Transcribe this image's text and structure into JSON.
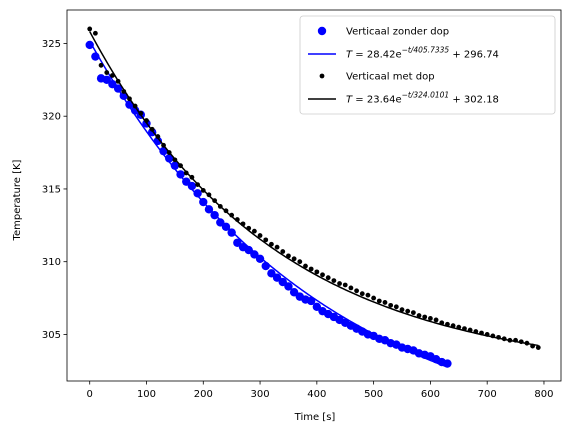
{
  "chart_data": {
    "type": "scatter",
    "xlabel": "Time [s]",
    "ylabel": "Temperature [K]",
    "xlim": [
      -40,
      830
    ],
    "ylim": [
      301.8,
      327.3
    ],
    "xticks": [
      0,
      100,
      200,
      300,
      400,
      500,
      600,
      700,
      800
    ],
    "yticks": [
      305,
      310,
      315,
      320,
      325
    ],
    "grid": false,
    "legend_position": "top-right",
    "colors": {
      "blue": "#0000ff",
      "black": "#000000"
    },
    "series": [
      {
        "name": "Verticaal zonder dop",
        "kind": "markers",
        "color": "#0000ff",
        "x": [
          0,
          10,
          20,
          30,
          40,
          50,
          60,
          70,
          80,
          90,
          100,
          110,
          120,
          130,
          140,
          150,
          160,
          170,
          180,
          190,
          200,
          210,
          220,
          230,
          240,
          250,
          260,
          270,
          280,
          290,
          300,
          310,
          320,
          330,
          340,
          350,
          360,
          370,
          380,
          390,
          400,
          410,
          420,
          430,
          440,
          450,
          460,
          470,
          480,
          490,
          500,
          510,
          520,
          530,
          540,
          550,
          560,
          570,
          580,
          590,
          600,
          610,
          620,
          630
        ],
        "y": [
          324.9,
          324.1,
          322.6,
          322.5,
          322.2,
          321.9,
          321.4,
          320.8,
          320.4,
          320.1,
          319.5,
          318.9,
          318.3,
          317.6,
          317.1,
          316.6,
          316.0,
          315.5,
          315.2,
          314.7,
          314.1,
          313.6,
          313.2,
          312.7,
          312.4,
          312.0,
          311.3,
          311.0,
          310.8,
          310.5,
          310.2,
          309.7,
          309.2,
          308.9,
          308.6,
          308.3,
          307.9,
          307.6,
          307.4,
          307.3,
          306.9,
          306.6,
          306.4,
          306.2,
          306.0,
          305.8,
          305.6,
          305.4,
          305.2,
          305.0,
          304.9,
          304.7,
          304.6,
          304.4,
          304.3,
          304.1,
          304.0,
          303.9,
          303.7,
          303.6,
          303.5,
          303.3,
          303.1,
          303.0
        ]
      },
      {
        "name": "$T = 28.42e^{-t/405.7335} + 296.74$",
        "kind": "line",
        "color": "#0000ff",
        "amplitude": 28.42,
        "tau": 405.7335,
        "offset": 296.74,
        "x_range": [
          0,
          630
        ]
      },
      {
        "name": "Verticaal met dop",
        "kind": "markers",
        "color": "#000000",
        "x": [
          0,
          10,
          20,
          30,
          40,
          50,
          60,
          70,
          80,
          90,
          100,
          110,
          120,
          130,
          140,
          150,
          160,
          170,
          180,
          190,
          200,
          210,
          220,
          230,
          240,
          250,
          260,
          270,
          280,
          290,
          300,
          310,
          320,
          330,
          340,
          350,
          360,
          370,
          380,
          390,
          400,
          410,
          420,
          430,
          440,
          450,
          460,
          470,
          480,
          490,
          500,
          510,
          520,
          530,
          540,
          550,
          560,
          570,
          580,
          590,
          600,
          610,
          620,
          630,
          640,
          650,
          660,
          670,
          680,
          690,
          700,
          710,
          720,
          730,
          740,
          750,
          760,
          770,
          780,
          790
        ],
        "y": [
          326.0,
          325.7,
          323.5,
          323.0,
          322.8,
          322.4,
          321.7,
          321.2,
          320.7,
          320.2,
          319.7,
          319.1,
          318.6,
          318.0,
          317.5,
          317.0,
          316.6,
          316.1,
          315.8,
          315.3,
          314.9,
          314.6,
          314.2,
          313.8,
          313.5,
          313.2,
          312.9,
          312.6,
          312.3,
          312.1,
          311.8,
          311.5,
          311.2,
          311.0,
          310.7,
          310.4,
          310.2,
          310.0,
          309.7,
          309.5,
          309.3,
          309.1,
          308.9,
          308.7,
          308.5,
          308.4,
          308.2,
          308.0,
          307.8,
          307.7,
          307.5,
          307.3,
          307.2,
          307.0,
          306.9,
          306.7,
          306.6,
          306.5,
          306.3,
          306.2,
          306.1,
          306.0,
          305.8,
          305.7,
          305.6,
          305.5,
          305.4,
          305.3,
          305.2,
          305.1,
          305.0,
          304.9,
          304.8,
          304.7,
          304.6,
          304.6,
          304.5,
          304.4,
          304.2,
          304.1
        ]
      },
      {
        "name": "$T = 23.64e^{-t/324.0101} + 302.18$",
        "kind": "line",
        "color": "#000000",
        "amplitude": 23.64,
        "tau": 324.0101,
        "offset": 302.18,
        "x_range": [
          0,
          790
        ]
      }
    ],
    "legend": {
      "entries": [
        {
          "label": "Verticaal zonder dop",
          "pre": "",
          "base": "",
          "sup": "",
          "post": ""
        },
        {
          "label": "",
          "pre": "T = 28.42e",
          "base": "",
          "sup": "−t/405.7335",
          "post": " + 296.74"
        },
        {
          "label": "Verticaal met dop",
          "pre": "",
          "base": "",
          "sup": "",
          "post": ""
        },
        {
          "label": "",
          "pre": "T = 23.64e",
          "base": "",
          "sup": "−t/324.0101",
          "post": " + 302.18"
        }
      ]
    }
  }
}
